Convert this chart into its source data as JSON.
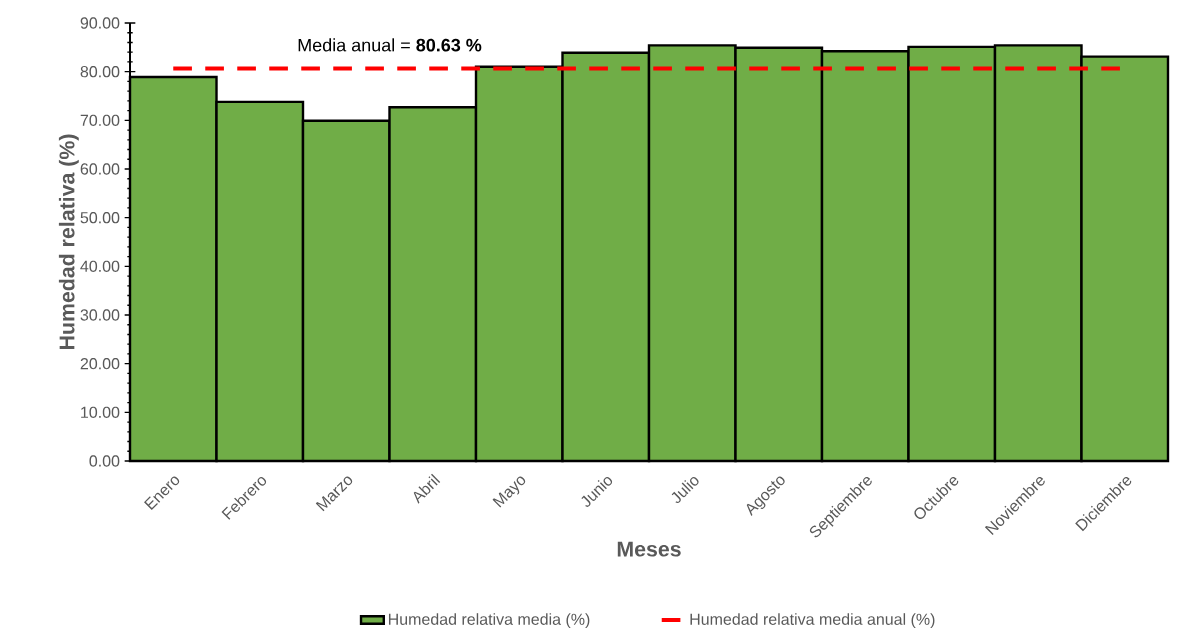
{
  "chart_data": {
    "type": "bar",
    "categories": [
      "Enero",
      "Febrero",
      "Marzo",
      "Abril",
      "Mayo",
      "Junio",
      "Julio",
      "Agosto",
      "Septiembre",
      "Octubre",
      "Noviembre",
      "Diciembre"
    ],
    "series": [
      {
        "name": "Humedad relativa media (%)",
        "color": "#70ad47",
        "values": [
          78.9,
          73.8,
          69.9,
          72.7,
          81.0,
          83.9,
          85.4,
          84.9,
          84.2,
          85.1,
          85.4,
          83.1
        ]
      },
      {
        "name": "Humedad relativa media anual (%)",
        "type": "line",
        "color": "#ff0000",
        "line_style": "dashed",
        "marker": "none",
        "values": [
          80.63,
          80.63,
          80.63,
          80.63,
          80.63,
          80.63,
          80.63,
          80.63,
          80.63,
          80.63,
          80.63,
          80.63
        ]
      }
    ],
    "xlabel": "Meses",
    "ylabel": "Humedad relativa (%)",
    "ylim": [
      0,
      90
    ],
    "yticks": [
      {
        "value": 0,
        "label": "0.00"
      },
      {
        "value": 10,
        "label": "10.00"
      },
      {
        "value": 20,
        "label": "20.00"
      },
      {
        "value": 30,
        "label": "30.00"
      },
      {
        "value": 40,
        "label": "40.00"
      },
      {
        "value": 50,
        "label": "50.00"
      },
      {
        "value": 60,
        "label": "60.00"
      },
      {
        "value": 70,
        "label": "70.00"
      },
      {
        "value": 80,
        "label": "80.00"
      },
      {
        "value": 90,
        "label": "90.00"
      }
    ],
    "annotations": [
      "Media anual = **80.63 %**"
    ],
    "legend": "bottom"
  }
}
